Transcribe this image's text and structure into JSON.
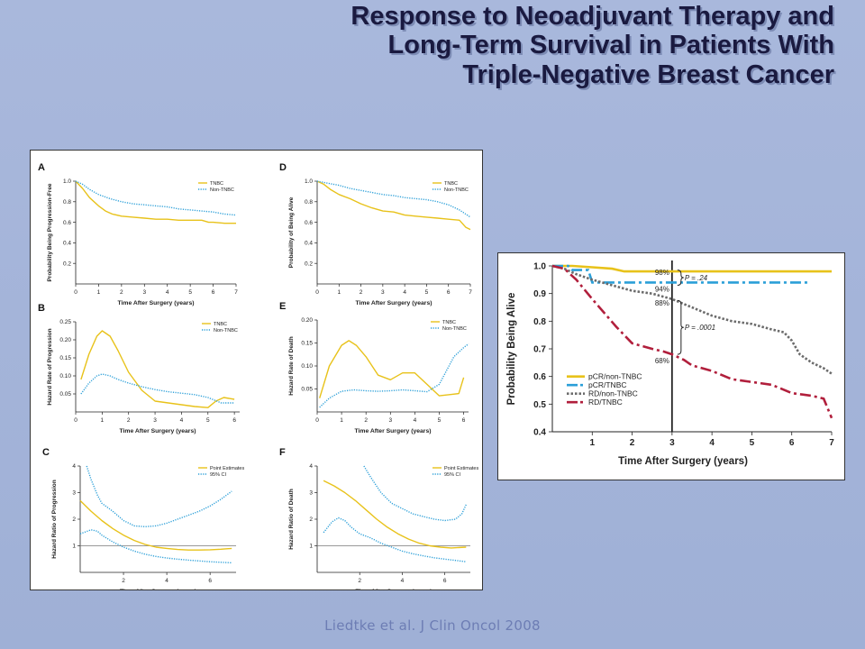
{
  "title": {
    "line1": "Response to Neoadjuvant Therapy and",
    "line2": "Long-Term Survival in Patients With",
    "line3": "Triple-Negative Breast Cancer"
  },
  "footer": "Liedtke et al. J Clin Oncol 2008",
  "colors": {
    "tnbc": "#e8c21a",
    "non_tnbc": "#2b9fd8",
    "gray": "#6b6b6b",
    "red": "#b11f3c",
    "text": "#222222"
  },
  "chart_data": [
    {
      "id": "A",
      "type": "line",
      "xlabel": "Time After Surgery (years)",
      "ylabel": "Probability Being Progression-Free",
      "xlim": [
        0,
        7
      ],
      "ylim": [
        0,
        1.0
      ],
      "xticks": [
        "0",
        "1",
        "2",
        "3",
        "4",
        "5",
        "6",
        "7"
      ],
      "yticks": [
        "0.2",
        "0.4",
        "0.6",
        "0.8",
        "1.0"
      ],
      "series": [
        {
          "name": "TNBC",
          "style": "solid",
          "x": [
            0,
            0.3,
            0.6,
            1,
            1.3,
            1.6,
            2,
            2.5,
            3,
            3.5,
            4,
            4.5,
            5,
            5.5,
            5.8,
            6,
            6.5,
            7
          ],
          "y": [
            1,
            0.93,
            0.84,
            0.76,
            0.71,
            0.68,
            0.66,
            0.65,
            0.64,
            0.63,
            0.63,
            0.62,
            0.62,
            0.62,
            0.6,
            0.6,
            0.59,
            0.59
          ]
        },
        {
          "name": "Non-TNBC",
          "style": "dotted",
          "x": [
            0,
            0.3,
            0.6,
            1,
            1.5,
            2,
            2.5,
            3,
            3.5,
            4,
            4.5,
            5,
            5.5,
            6,
            6.5,
            7
          ],
          "y": [
            1,
            0.97,
            0.92,
            0.87,
            0.83,
            0.8,
            0.78,
            0.77,
            0.76,
            0.75,
            0.73,
            0.72,
            0.71,
            0.7,
            0.68,
            0.67
          ]
        }
      ]
    },
    {
      "id": "D",
      "type": "line",
      "xlabel": "Time After Surgery (years)",
      "ylabel": "Probability of Being Alive",
      "xlim": [
        0,
        7
      ],
      "ylim": [
        0,
        1.0
      ],
      "xticks": [
        "0",
        "1",
        "2",
        "3",
        "4",
        "5",
        "6",
        "7"
      ],
      "yticks": [
        "0.2",
        "0.4",
        "0.6",
        "0.8",
        "1.0"
      ],
      "series": [
        {
          "name": "TNBC",
          "style": "solid",
          "x": [
            0,
            0.3,
            0.6,
            1,
            1.5,
            2,
            2.5,
            3,
            3.5,
            4,
            4.5,
            5,
            5.5,
            6,
            6.5,
            6.8,
            7
          ],
          "y": [
            1,
            0.97,
            0.92,
            0.87,
            0.83,
            0.78,
            0.74,
            0.71,
            0.7,
            0.67,
            0.66,
            0.65,
            0.64,
            0.63,
            0.62,
            0.55,
            0.53
          ]
        },
        {
          "name": "Non-TNBC",
          "style": "dotted",
          "x": [
            0,
            0.5,
            1,
            1.5,
            2,
            2.5,
            3,
            3.5,
            4,
            4.5,
            5,
            5.5,
            6,
            6.5,
            7
          ],
          "y": [
            1,
            0.98,
            0.96,
            0.93,
            0.91,
            0.89,
            0.87,
            0.86,
            0.84,
            0.83,
            0.82,
            0.8,
            0.77,
            0.72,
            0.65
          ]
        }
      ]
    },
    {
      "id": "B",
      "type": "line",
      "xlabel": "Time After Surgery (years)",
      "ylabel": "Hazard Rate of Progression",
      "xlim": [
        0,
        6.2
      ],
      "ylim": [
        0,
        0.25
      ],
      "xticks": [
        "0",
        "1",
        "2",
        "3",
        "4",
        "5",
        "6"
      ],
      "yticks": [
        "0.05",
        "0.10",
        "0.15",
        "0.20",
        "0.25"
      ],
      "series": [
        {
          "name": "TNBC",
          "style": "solid",
          "x": [
            0.2,
            0.5,
            0.8,
            1,
            1.3,
            1.6,
            2,
            2.5,
            3,
            3.5,
            4,
            4.5,
            5,
            5.3,
            5.6,
            6
          ],
          "y": [
            0.09,
            0.16,
            0.21,
            0.225,
            0.21,
            0.17,
            0.11,
            0.06,
            0.03,
            0.025,
            0.02,
            0.015,
            0.012,
            0.03,
            0.04,
            0.035
          ]
        },
        {
          "name": "Non-TNBC",
          "style": "dotted",
          "x": [
            0.2,
            0.5,
            0.8,
            1,
            1.3,
            1.6,
            2,
            2.5,
            3,
            3.5,
            4,
            4.5,
            5,
            5.5,
            6
          ],
          "y": [
            0.05,
            0.08,
            0.1,
            0.105,
            0.1,
            0.09,
            0.08,
            0.07,
            0.062,
            0.056,
            0.052,
            0.048,
            0.04,
            0.025,
            0.025
          ]
        }
      ]
    },
    {
      "id": "E",
      "type": "line",
      "xlabel": "Time After Surgery (years)",
      "ylabel": "Hazard Rate of Death",
      "xlim": [
        0,
        6.2
      ],
      "ylim": [
        0,
        0.2
      ],
      "xticks": [
        "0",
        "1",
        "2",
        "3",
        "4",
        "5",
        "6"
      ],
      "yticks": [
        "0.05",
        "0.10",
        "0.15",
        "0.20"
      ],
      "series": [
        {
          "name": "TNBC",
          "style": "solid",
          "x": [
            0.1,
            0.5,
            1,
            1.3,
            1.6,
            2,
            2.5,
            3,
            3.5,
            4,
            4.5,
            5,
            5.5,
            5.8,
            6
          ],
          "y": [
            0.03,
            0.1,
            0.145,
            0.155,
            0.145,
            0.12,
            0.08,
            0.07,
            0.085,
            0.085,
            0.06,
            0.035,
            0.038,
            0.04,
            0.075
          ]
        },
        {
          "name": "Non-TNBC",
          "style": "dotted",
          "x": [
            0.1,
            0.5,
            1,
            1.5,
            2,
            2.5,
            3,
            3.5,
            4,
            4.5,
            5,
            5.3,
            5.6,
            6,
            6.2
          ],
          "y": [
            0.01,
            0.03,
            0.045,
            0.048,
            0.046,
            0.045,
            0.046,
            0.048,
            0.046,
            0.044,
            0.06,
            0.09,
            0.12,
            0.14,
            0.148
          ]
        }
      ]
    },
    {
      "id": "C",
      "type": "line",
      "xlabel": "Time After Surgery (years)",
      "ylabel": "Hazard Ratio of Progression",
      "xlim": [
        0,
        7.2
      ],
      "ylim": [
        0,
        4
      ],
      "xticks": [
        "2",
        "4",
        "6"
      ],
      "yticks": [
        "1",
        "2",
        "3",
        "4"
      ],
      "refline": 1,
      "series": [
        {
          "name": "Point Estimates",
          "style": "solid",
          "x": [
            0,
            0.5,
            1,
            1.5,
            2,
            2.5,
            3,
            3.5,
            4,
            4.5,
            5,
            5.5,
            6,
            6.5,
            7
          ],
          "y": [
            2.7,
            2.3,
            1.95,
            1.65,
            1.4,
            1.2,
            1.05,
            0.95,
            0.9,
            0.86,
            0.84,
            0.84,
            0.85,
            0.87,
            0.9
          ]
        },
        {
          "name": "95% CI",
          "style": "dotted",
          "x": [
            0.3,
            0.5,
            0.8,
            1,
            1.5,
            2,
            2.5,
            3,
            3.5,
            4,
            4.5,
            5,
            5.5,
            6,
            6.5,
            7
          ],
          "y": [
            4.0,
            3.5,
            2.9,
            2.6,
            2.3,
            1.95,
            1.75,
            1.72,
            1.75,
            1.85,
            2.0,
            2.15,
            2.3,
            2.5,
            2.75,
            3.05
          ]
        },
        {
          "name": "95% CI lower",
          "style": "dotted",
          "x": [
            0,
            0.5,
            0.8,
            1,
            1.5,
            2,
            2.5,
            3,
            3.5,
            4,
            4.5,
            5,
            5.5,
            6,
            6.5,
            7
          ],
          "y": [
            1.45,
            1.6,
            1.55,
            1.4,
            1.15,
            0.95,
            0.8,
            0.68,
            0.6,
            0.54,
            0.5,
            0.46,
            0.43,
            0.4,
            0.38,
            0.36
          ]
        }
      ]
    },
    {
      "id": "F",
      "type": "line",
      "xlabel": "Time After Surgery (years)",
      "ylabel": "Hazard Ratio of Death",
      "xlim": [
        0,
        7.2
      ],
      "ylim": [
        0,
        4
      ],
      "xticks": [
        "2",
        "4",
        "6"
      ],
      "yticks": [
        "1",
        "2",
        "3",
        "4"
      ],
      "refline": 1,
      "series": [
        {
          "name": "Point Estimates",
          "style": "solid",
          "x": [
            0.3,
            0.8,
            1.3,
            1.8,
            2.3,
            2.8,
            3.3,
            3.8,
            4.3,
            4.8,
            5.3,
            5.8,
            6.3,
            7
          ],
          "y": [
            3.45,
            3.25,
            3.0,
            2.7,
            2.35,
            2.0,
            1.7,
            1.45,
            1.25,
            1.1,
            1.0,
            0.95,
            0.92,
            0.95
          ]
        },
        {
          "name": "95% CI",
          "style": "dotted",
          "x": [
            2.2,
            2.5,
            3,
            3.5,
            4,
            4.5,
            5,
            5.5,
            6,
            6.5,
            6.8,
            7
          ],
          "y": [
            4.0,
            3.6,
            3.0,
            2.6,
            2.4,
            2.2,
            2.1,
            2.0,
            1.95,
            2.0,
            2.2,
            2.55
          ]
        },
        {
          "name": "95% CI lower",
          "style": "dotted",
          "x": [
            0.3,
            0.7,
            1,
            1.3,
            1.6,
            2,
            2.5,
            3,
            3.5,
            4,
            4.5,
            5,
            5.5,
            6,
            6.5,
            7
          ],
          "y": [
            1.5,
            1.9,
            2.05,
            1.95,
            1.7,
            1.45,
            1.3,
            1.1,
            0.95,
            0.8,
            0.7,
            0.62,
            0.55,
            0.5,
            0.45,
            0.4
          ]
        }
      ]
    },
    {
      "id": "main",
      "type": "line",
      "xlabel": "Time After Surgery (years)",
      "ylabel": "Probability Being Alive",
      "xlim": [
        0,
        7
      ],
      "ylim": [
        0.4,
        1.0
      ],
      "xticks": [
        "1",
        "2",
        "3",
        "4",
        "5",
        "6",
        "7"
      ],
      "yticks": [
        "0.4",
        "0.5",
        "0.6",
        "0.7",
        "0.8",
        "0.9",
        "1.0"
      ],
      "landmark_x": 3,
      "annotations": [
        "98%",
        "94%",
        "88%",
        "68%",
        "P = .24",
        "P = .0001"
      ],
      "series": [
        {
          "name": "pCR/non-TNBC",
          "style": "solid",
          "color": "tnbc",
          "x": [
            0,
            0.5,
            1,
            1.5,
            1.8,
            2,
            2.5,
            3,
            4,
            5,
            6,
            7
          ],
          "y": [
            1,
            1,
            0.995,
            0.99,
            0.98,
            0.98,
            0.98,
            0.98,
            0.98,
            0.98,
            0.98,
            0.98
          ]
        },
        {
          "name": "pCR/TNBC",
          "style": "dashdot",
          "color": "non_tnbc",
          "x": [
            0,
            0.4,
            0.5,
            0.9,
            1,
            1.5,
            2,
            3,
            4,
            5,
            6,
            6.4
          ],
          "y": [
            1,
            1,
            0.985,
            0.985,
            0.94,
            0.94,
            0.94,
            0.94,
            0.94,
            0.94,
            0.94,
            0.94
          ]
        },
        {
          "name": "RD/non-TNBC",
          "style": "dotted",
          "color": "gray",
          "x": [
            0,
            0.3,
            0.6,
            1,
            1.5,
            2,
            2.5,
            3,
            3.5,
            4,
            4.5,
            5,
            5.5,
            5.8,
            6,
            6.2,
            6.5,
            6.8,
            7
          ],
          "y": [
            1,
            0.99,
            0.97,
            0.95,
            0.93,
            0.91,
            0.9,
            0.88,
            0.85,
            0.82,
            0.8,
            0.79,
            0.77,
            0.76,
            0.73,
            0.68,
            0.65,
            0.63,
            0.61
          ]
        },
        {
          "name": "RD/TNBC",
          "style": "dashdot",
          "color": "red",
          "x": [
            0,
            0.3,
            0.6,
            1,
            1.3,
            1.6,
            2,
            2.5,
            2.8,
            3,
            3.3,
            3.5,
            4,
            4.5,
            5,
            5.5,
            6,
            6.5,
            6.8,
            7
          ],
          "y": [
            1,
            0.99,
            0.95,
            0.88,
            0.83,
            0.78,
            0.72,
            0.7,
            0.69,
            0.68,
            0.66,
            0.64,
            0.62,
            0.59,
            0.58,
            0.57,
            0.54,
            0.53,
            0.52,
            0.45
          ]
        }
      ]
    }
  ]
}
